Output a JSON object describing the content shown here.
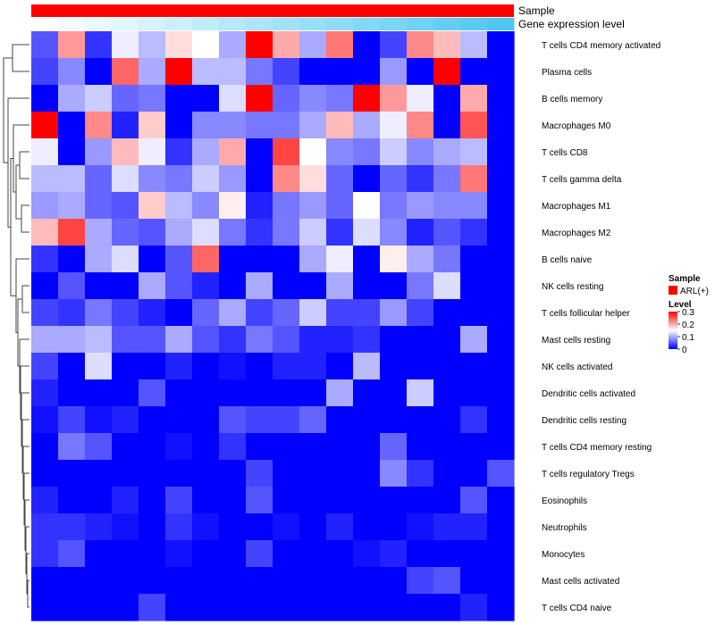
{
  "chart_data": {
    "type": "heatmap",
    "annotations": {
      "sample_label": "Sample",
      "gene_label": "Gene expression level",
      "sample_color": "#ff0000",
      "gene_gradient": [
        "#ffffff",
        "#4fc8f0"
      ]
    },
    "rows": [
      "T cells CD4 memory activated",
      "Plasma cells",
      "B cells memory",
      "Macrophages M0",
      "T cells CD8",
      "T cells gamma delta",
      "Macrophages M1",
      "Macrophages M2",
      "B cells naive",
      "NK cells resting",
      "T cells follicular helper",
      "Mast cells resting",
      "NK cells activated",
      "Dendritic cells activated",
      "Dendritic cells resting",
      "T cells CD4 memory resting",
      "T cells regulatory  Tregs",
      "Eosinophils",
      "Neutrophils",
      "Monocytes",
      "Mast cells activated",
      "T cells CD4 naive"
    ],
    "n_columns": 18,
    "values": [
      [
        0.05,
        0.21,
        0.03,
        0.14,
        0.11,
        0.17,
        0.15,
        0.1,
        0.3,
        0.2,
        0.1,
        0.23,
        0.0,
        0.04,
        0.22,
        0.19,
        0.11,
        0.0
      ],
      [
        0.04,
        0.08,
        0.0,
        0.24,
        0.1,
        0.3,
        0.11,
        0.11,
        0.07,
        0.04,
        0.0,
        0.0,
        0.0,
        0.09,
        0.0,
        0.3,
        0.0,
        0.0
      ],
      [
        0.0,
        0.1,
        0.12,
        0.06,
        0.07,
        0.0,
        0.0,
        0.13,
        0.3,
        0.06,
        0.08,
        0.07,
        0.3,
        0.21,
        0.14,
        0.0,
        0.2,
        0.0
      ],
      [
        0.3,
        0.0,
        0.22,
        0.02,
        0.18,
        0.0,
        0.08,
        0.08,
        0.07,
        0.07,
        0.1,
        0.19,
        0.1,
        0.14,
        0.22,
        0.0,
        0.25,
        0.0
      ],
      [
        0.14,
        0.0,
        0.09,
        0.19,
        0.14,
        0.03,
        0.1,
        0.2,
        0.0,
        0.26,
        0.15,
        0.08,
        0.07,
        0.12,
        0.08,
        0.1,
        0.11,
        0.0
      ],
      [
        0.11,
        0.11,
        0.06,
        0.13,
        0.08,
        0.07,
        0.12,
        0.09,
        0.0,
        0.22,
        0.17,
        0.06,
        0.0,
        0.06,
        0.03,
        0.07,
        0.23,
        0.0
      ],
      [
        0.09,
        0.1,
        0.06,
        0.05,
        0.18,
        0.11,
        0.08,
        0.16,
        0.02,
        0.07,
        0.09,
        0.06,
        0.15,
        0.07,
        0.09,
        0.08,
        0.08,
        0.0
      ],
      [
        0.19,
        0.26,
        0.1,
        0.06,
        0.05,
        0.1,
        0.13,
        0.07,
        0.03,
        0.07,
        0.12,
        0.03,
        0.13,
        0.08,
        0.02,
        0.05,
        0.03,
        0.0
      ],
      [
        0.03,
        0.0,
        0.1,
        0.13,
        0.0,
        0.05,
        0.24,
        0.0,
        0.0,
        0.0,
        0.1,
        0.14,
        0.0,
        0.16,
        0.1,
        0.07,
        0.0,
        0.0
      ],
      [
        0.0,
        0.05,
        0.0,
        0.0,
        0.1,
        0.05,
        0.02,
        0.0,
        0.1,
        0.0,
        0.0,
        0.1,
        0.0,
        0.0,
        0.07,
        0.13,
        0.0,
        0.0
      ],
      [
        0.04,
        0.03,
        0.07,
        0.04,
        0.02,
        0.0,
        0.06,
        0.1,
        0.04,
        0.06,
        0.12,
        0.04,
        0.04,
        0.09,
        0.04,
        0.0,
        0.0,
        0.0
      ],
      [
        0.1,
        0.1,
        0.11,
        0.05,
        0.05,
        0.1,
        0.05,
        0.03,
        0.07,
        0.05,
        0.02,
        0.02,
        0.03,
        0.0,
        0.0,
        0.0,
        0.1,
        0.0
      ],
      [
        0.04,
        0.0,
        0.13,
        0.0,
        0.0,
        0.02,
        0.0,
        0.01,
        0.0,
        0.02,
        0.02,
        0.0,
        0.11,
        0.0,
        0.0,
        0.0,
        0.0,
        0.0
      ],
      [
        0.02,
        0.0,
        0.0,
        0.0,
        0.05,
        0.0,
        0.0,
        0.0,
        0.0,
        0.0,
        0.0,
        0.1,
        0.0,
        0.0,
        0.12,
        0.0,
        0.0,
        0.0
      ],
      [
        0.01,
        0.04,
        0.01,
        0.02,
        0.0,
        0.0,
        0.0,
        0.05,
        0.04,
        0.04,
        0.06,
        0.0,
        0.0,
        0.0,
        0.0,
        0.0,
        0.03,
        0.0
      ],
      [
        0.0,
        0.07,
        0.05,
        0.0,
        0.0,
        0.01,
        0.0,
        0.03,
        0.0,
        0.0,
        0.0,
        0.0,
        0.0,
        0.06,
        0.0,
        0.0,
        0.0,
        0.0
      ],
      [
        0.0,
        0.0,
        0.0,
        0.0,
        0.0,
        0.0,
        0.0,
        0.0,
        0.04,
        0.0,
        0.0,
        0.0,
        0.0,
        0.08,
        0.03,
        0.0,
        0.0,
        0.05
      ],
      [
        0.02,
        0.0,
        0.0,
        0.02,
        0.0,
        0.04,
        0.0,
        0.0,
        0.05,
        0.0,
        0.0,
        0.0,
        0.0,
        0.0,
        0.0,
        0.0,
        0.05,
        0.0
      ],
      [
        0.03,
        0.03,
        0.02,
        0.01,
        0.0,
        0.03,
        0.01,
        0.0,
        0.0,
        0.01,
        0.0,
        0.02,
        0.0,
        0.0,
        0.01,
        0.02,
        0.02,
        0.0
      ],
      [
        0.03,
        0.05,
        0.0,
        0.0,
        0.0,
        0.01,
        0.0,
        0.0,
        0.04,
        0.0,
        0.0,
        0.0,
        0.01,
        0.02,
        0.0,
        0.0,
        0.0,
        0.0
      ],
      [
        0.0,
        0.0,
        0.0,
        0.0,
        0.0,
        0.0,
        0.0,
        0.0,
        0.0,
        0.0,
        0.0,
        0.0,
        0.0,
        0.0,
        0.04,
        0.05,
        0.0,
        0.0
      ],
      [
        0.0,
        0.0,
        0.0,
        0.0,
        0.04,
        0.0,
        0.0,
        0.0,
        0.0,
        0.0,
        0.0,
        0.0,
        0.0,
        0.0,
        0.0,
        0.0,
        0.02,
        0.0
      ]
    ],
    "color_scale": {
      "min": 0,
      "mid": 0.15,
      "max": 0.3,
      "low": "#0000ff",
      "mid_color": "#ffffff",
      "high": "#ff0000"
    },
    "legend": {
      "position": "right",
      "sample_title": "Sample",
      "sample_entry": "ARL(+)",
      "level_title": "Level",
      "ticks": [
        "0.3",
        "0.2",
        "0.1",
        "0"
      ]
    }
  }
}
